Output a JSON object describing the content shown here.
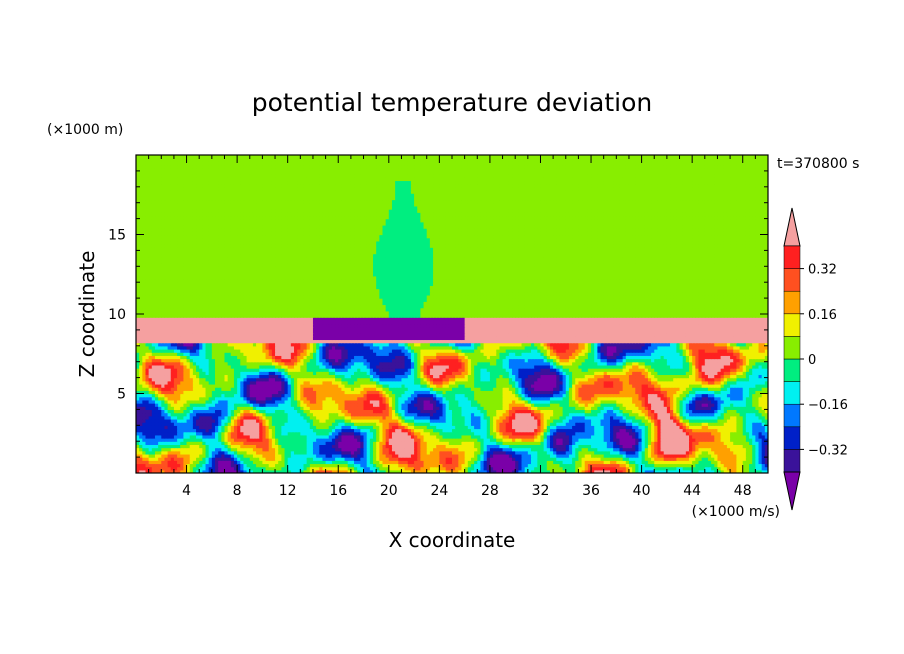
{
  "chart_data": {
    "type": "heatmap",
    "title": "potential temperature deviation",
    "xlabel": "X coordinate",
    "ylabel": "Z coordinate",
    "x_unit": "(×1000 m/s)",
    "y_unit": "(×1000 m)",
    "time_label": "t=370800 s",
    "xlim": [
      0,
      50
    ],
    "ylim": [
      0,
      20
    ],
    "x_ticks": [
      4,
      8,
      12,
      16,
      20,
      24,
      28,
      32,
      36,
      40,
      44,
      48
    ],
    "y_ticks": [
      5,
      10,
      15
    ],
    "colorbar": {
      "levels": [
        -0.4,
        -0.32,
        -0.24,
        -0.16,
        -0.08,
        0,
        0.08,
        0.16,
        0.24,
        0.32,
        0.4
      ],
      "tick_values": [
        0.32,
        0.16,
        0,
        -0.16,
        -0.32
      ],
      "tick_labels": [
        "0.32",
        "0.16",
        "0",
        "−0.16",
        "−0.32"
      ],
      "colors": [
        "#7a00a8",
        "#3a129a",
        "#0020c8",
        "#0078ff",
        "#00f0f0",
        "#00ee80",
        "#88ee00",
        "#f0f000",
        "#ffa000",
        "#ff5020",
        "#ff2020",
        "#f5a0a0"
      ],
      "extend": "both"
    }
  }
}
